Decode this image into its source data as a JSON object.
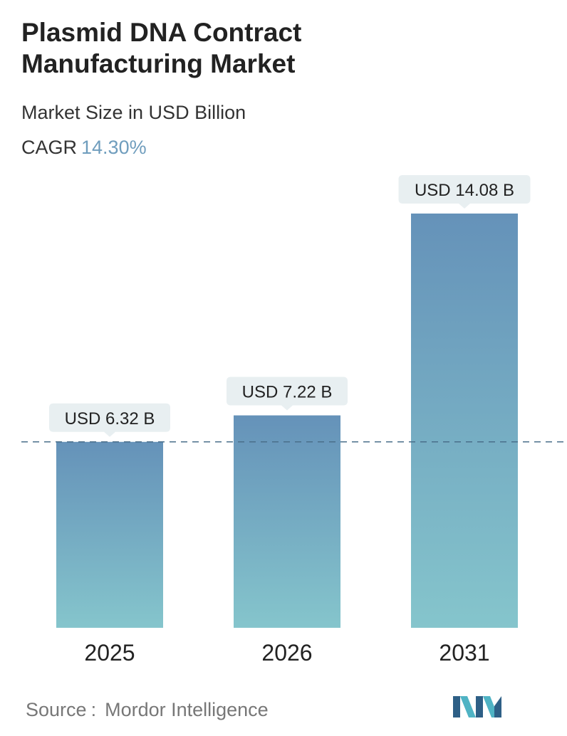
{
  "header": {
    "title": "Plasmid DNA Contract Manufacturing Market",
    "subtitle": "Market Size in USD Billion",
    "cagr_label": "CAGR",
    "cagr_value": "14.30%"
  },
  "footer": {
    "source_label": "Source",
    "source_separator": ":",
    "source_name": "Mordor Intelligence"
  },
  "logo": {
    "icon": "mordor-intelligence-logo-icon",
    "colors": [
      "#2e5f86",
      "#4fb3c4"
    ]
  },
  "colors": {
    "bar_top": "#6592b9",
    "bar_bottom": "#85c5cc",
    "callout_bg": "#e8eff1",
    "reference_line": "#4a6f8a",
    "cagr_accent": "#6f9dbd"
  },
  "chart_data": {
    "type": "bar",
    "categories": [
      "2025",
      "2026",
      "2031"
    ],
    "values": [
      6.32,
      7.22,
      14.08
    ],
    "data_labels": [
      "USD 6.32 B",
      "USD 7.22 B",
      "USD 14.08 B"
    ],
    "reference_line_value": 6.32,
    "reference_line_style": "dashed",
    "ylim": [
      0,
      14.08
    ],
    "grid": false,
    "legend": "none"
  }
}
